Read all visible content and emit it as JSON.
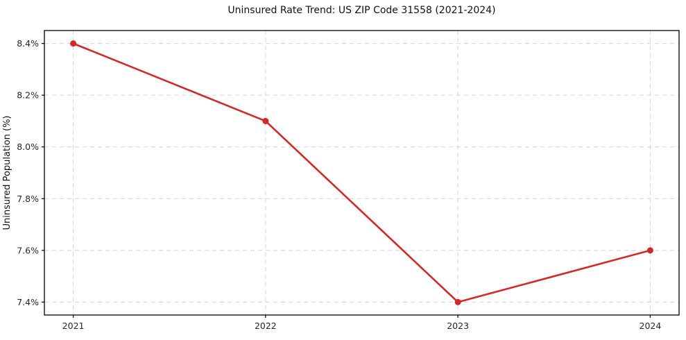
{
  "chart_data": {
    "type": "line",
    "title": "Uninsured Rate Trend: US ZIP Code 31558 (2021-2024)",
    "xlabel": "",
    "ylabel": "Uninsured Population (%)",
    "x": [
      2021,
      2022,
      2023,
      2024
    ],
    "values": [
      8.4,
      8.1,
      7.4,
      7.6
    ],
    "x_tick_labels": [
      "2021",
      "2022",
      "2023",
      "2024"
    ],
    "y_ticks": [
      7.4,
      7.6,
      7.8,
      8.0,
      8.2,
      8.4
    ],
    "y_tick_labels": [
      "7.4%",
      "7.6%",
      "7.8%",
      "8.0%",
      "8.2%",
      "8.4%"
    ],
    "xlim": [
      2020.85,
      2024.15
    ],
    "ylim": [
      7.35,
      8.45
    ],
    "grid": true,
    "grid_style": "dashed",
    "legend": false,
    "marker": "circle",
    "line_color": "#d62728",
    "grid_color": "#d4d4d4",
    "spine_color": "#000000",
    "tick_label_color": "#262626",
    "background_color": "#ffffff"
  }
}
